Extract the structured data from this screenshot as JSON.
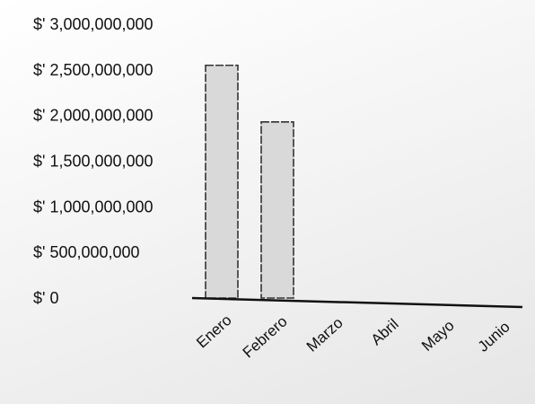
{
  "chart_data": {
    "type": "bar",
    "title": "",
    "xlabel": "",
    "ylabel": "",
    "categories": [
      "Enero",
      "Febrero",
      "Marzo",
      "Abril",
      "Mayo",
      "Junio"
    ],
    "values": [
      2550000000,
      1930000000,
      0,
      0,
      0,
      0
    ],
    "ylim": [
      0,
      3000000000
    ],
    "yticks": [
      0,
      500000000,
      1000000000,
      1500000000,
      2000000000,
      2500000000,
      3000000000
    ],
    "ytick_labels": [
      "$' 0",
      "$' 500,000,000",
      "$' 1,000,000,000",
      "$' 1,500,000,000",
      "$' 2,000,000,000",
      "$' 2,500,000,000",
      "$' 3,000,000,000"
    ],
    "grid": false,
    "legend": "none",
    "colors": {
      "bar_fill": "#d9d9d9",
      "bar_stroke": "#333333",
      "axis": "#111111",
      "text": "#111111"
    }
  }
}
